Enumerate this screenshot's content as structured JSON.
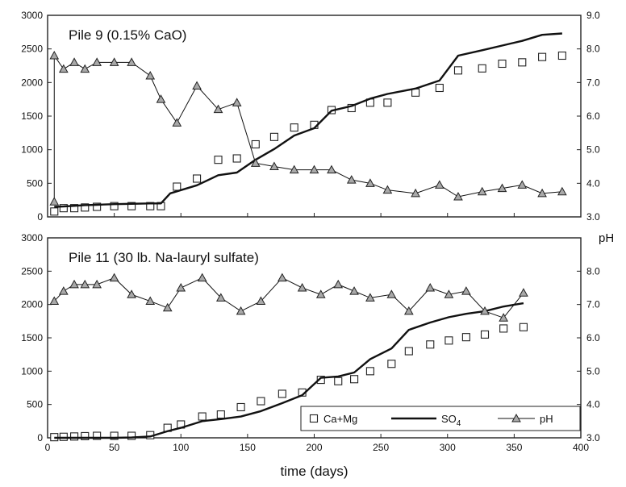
{
  "chart_data": [
    {
      "type": "line",
      "title": "Pile 9 (0.15% CaO)",
      "xlim": [
        0,
        400
      ],
      "ylim": [
        0,
        3000
      ],
      "y2lim": [
        3.0,
        9.0
      ],
      "xticks": [
        "0",
        "50",
        "100",
        "150",
        "200",
        "250",
        "300",
        "350",
        "400"
      ],
      "yticks": [
        "0",
        "500",
        "1000",
        "1500",
        "2000",
        "2500",
        "3000"
      ],
      "y2ticks": [
        "3.0",
        "4.0",
        "5.0",
        "6.0",
        "7.0",
        "8.0",
        "9.0"
      ],
      "series": [
        {
          "name": "Ca+Mg",
          "axis": "left",
          "marker": "square",
          "x": [
            5,
            12,
            20,
            28,
            37,
            50,
            63,
            77,
            85,
            97,
            112,
            128,
            142,
            156,
            170,
            185,
            200,
            213,
            228,
            242,
            255,
            276,
            294,
            308,
            326,
            341,
            356,
            371,
            386
          ],
          "y": [
            80,
            130,
            130,
            140,
            150,
            160,
            160,
            160,
            160,
            450,
            570,
            850,
            870,
            1080,
            1190,
            1330,
            1370,
            1590,
            1620,
            1700,
            1700,
            1850,
            1920,
            2180,
            2210,
            2280,
            2300,
            2380,
            2400
          ]
        },
        {
          "name": "SO4",
          "axis": "left",
          "marker": "none",
          "x": [
            5,
            12,
            20,
            28,
            37,
            50,
            63,
            77,
            85,
            92,
            97,
            112,
            128,
            142,
            156,
            170,
            185,
            200,
            213,
            228,
            242,
            255,
            276,
            294,
            308,
            326,
            341,
            356,
            371,
            386
          ],
          "y": [
            150,
            155,
            165,
            175,
            180,
            190,
            195,
            200,
            200,
            350,
            380,
            470,
            620,
            660,
            850,
            1010,
            1210,
            1320,
            1580,
            1650,
            1760,
            1830,
            1910,
            2030,
            2400,
            2480,
            2550,
            2620,
            2710,
            2730
          ]
        },
        {
          "name": "pH",
          "axis": "right",
          "marker": "triangle",
          "x": [
            5,
            5,
            12,
            20,
            28,
            37,
            50,
            63,
            77,
            85,
            97,
            112,
            128,
            142,
            156,
            170,
            185,
            200,
            213,
            228,
            242,
            255,
            276,
            294,
            308,
            326,
            341,
            356,
            371,
            386
          ],
          "y": [
            3.45,
            7.8,
            7.4,
            7.6,
            7.4,
            7.6,
            7.6,
            7.6,
            7.2,
            6.5,
            5.8,
            6.9,
            6.2,
            6.4,
            4.6,
            4.5,
            4.4,
            4.4,
            4.4,
            4.1,
            4.0,
            3.8,
            3.7,
            3.95,
            3.6,
            3.75,
            3.85,
            3.95,
            3.7,
            3.75
          ]
        }
      ]
    },
    {
      "type": "line",
      "title": "Pile 11 (30 lb. Na-lauryl sulfate)",
      "xlabel": "time (days)",
      "y2label": "pH",
      "xlim": [
        0,
        400
      ],
      "ylim": [
        0,
        3000
      ],
      "y2lim": [
        3.0,
        9.0
      ],
      "xticks": [
        "0",
        "50",
        "100",
        "150",
        "200",
        "250",
        "300",
        "350",
        "400"
      ],
      "yticks": [
        "0",
        "500",
        "1000",
        "1500",
        "2000",
        "2500",
        "3000"
      ],
      "y2ticks": [
        "3.0",
        "4.0",
        "5.0",
        "6.0",
        "7.0",
        "8.0",
        "9.0"
      ],
      "legend": [
        "Ca+Mg",
        "SO4",
        "pH"
      ],
      "legend_position": "bottom-right",
      "series": [
        {
          "name": "Ca+Mg",
          "axis": "left",
          "marker": "square",
          "x": [
            5,
            12,
            20,
            28,
            37,
            50,
            63,
            77,
            90,
            100,
            116,
            130,
            145,
            160,
            176,
            191,
            205,
            218,
            230,
            242,
            258,
            271,
            287,
            301,
            314,
            328,
            342,
            357
          ],
          "y": [
            10,
            15,
            20,
            25,
            30,
            30,
            30,
            40,
            150,
            200,
            320,
            350,
            460,
            550,
            660,
            680,
            870,
            850,
            880,
            1000,
            1110,
            1300,
            1400,
            1460,
            1510,
            1550,
            1640,
            1660
          ]
        },
        {
          "name": "SO4",
          "axis": "left",
          "marker": "none",
          "x": [
            5,
            20,
            37,
            50,
            63,
            77,
            90,
            100,
            116,
            130,
            145,
            160,
            176,
            191,
            205,
            218,
            230,
            242,
            258,
            271,
            287,
            301,
            314,
            328,
            342,
            357
          ],
          "y": [
            0,
            0,
            0,
            0,
            5,
            20,
            100,
            150,
            250,
            280,
            320,
            400,
            520,
            640,
            900,
            920,
            980,
            1180,
            1340,
            1620,
            1730,
            1810,
            1860,
            1900,
            1970,
            2020
          ]
        },
        {
          "name": "pH",
          "axis": "right",
          "marker": "triangle",
          "x": [
            5,
            12,
            20,
            28,
            37,
            50,
            63,
            77,
            90,
            100,
            116,
            130,
            145,
            160,
            176,
            191,
            205,
            218,
            230,
            242,
            258,
            271,
            287,
            301,
            314,
            328,
            342,
            357
          ],
          "y": [
            7.1,
            7.4,
            7.6,
            7.6,
            7.6,
            7.8,
            7.3,
            7.1,
            6.9,
            7.5,
            7.8,
            7.2,
            6.8,
            7.1,
            7.8,
            7.5,
            7.3,
            7.6,
            7.4,
            7.2,
            7.3,
            6.8,
            7.5,
            7.3,
            7.4,
            6.8,
            6.6,
            7.35
          ]
        }
      ]
    }
  ]
}
